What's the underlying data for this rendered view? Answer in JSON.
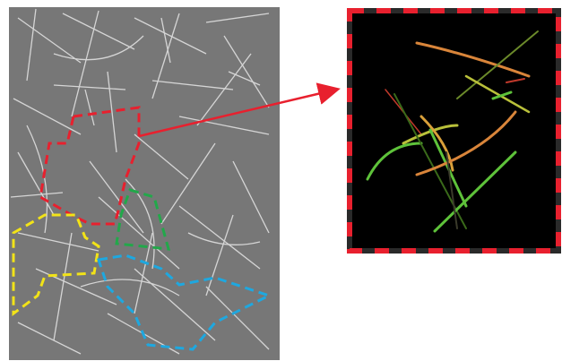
{
  "figure": {
    "description_none": "",
    "colors": {
      "background": "#ffffff",
      "micrograph": "#7a7a7a",
      "filament_light": "#e6e6e6",
      "red_region": "#e8202e",
      "yellow_region": "#f2e318",
      "green_region": "#22a84a",
      "blue_region": "#1ea8e0",
      "arrow": "#e8202e",
      "inset_background": "#000000",
      "inset_border_dark": "#2a2a2a",
      "inset_border_red": "#e8202e",
      "fiber_orange": "#d9853a",
      "fiber_green": "#5ec23a",
      "fiber_yellow_green": "#b9c03a",
      "fiber_red": "#c0392b"
    },
    "regions": [
      {
        "name": "red-dashed-region",
        "color": "red"
      },
      {
        "name": "yellow-dashed-region",
        "color": "yellow"
      },
      {
        "name": "green-dashed-region",
        "color": "green"
      },
      {
        "name": "blue-dashed-region",
        "color": "blue"
      }
    ],
    "arrow": {
      "from": "red-dashed-region",
      "to": "magnified-inset"
    }
  }
}
